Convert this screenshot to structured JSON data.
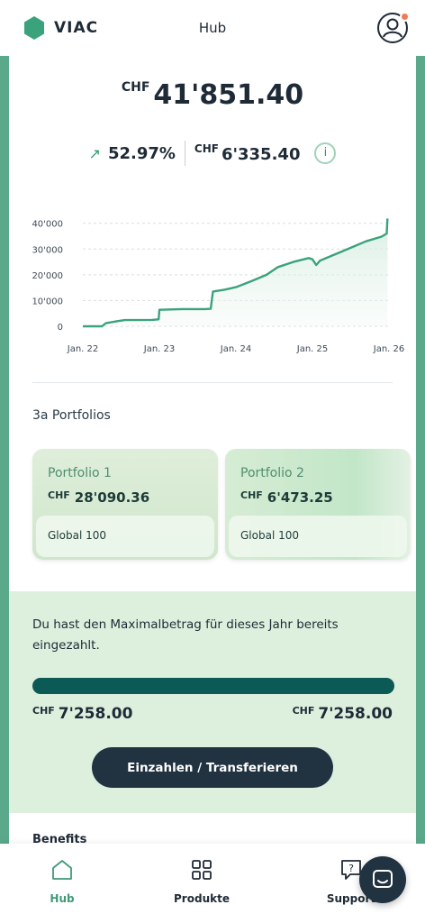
{
  "header": {
    "logo_text": "VIAC",
    "title": "Hub"
  },
  "balance": {
    "currency": "CHF",
    "amount": "41'851.40"
  },
  "performance": {
    "percent": "52.97%",
    "currency": "CHF",
    "gain": "6'335.40",
    "info_label": "i"
  },
  "chart_data": {
    "type": "area",
    "x_ticks": [
      "Jan. 22",
      "Jan. 23",
      "Jan. 24",
      "Jan. 25",
      "Jan. 26"
    ],
    "y_ticks": [
      "0",
      "10'000",
      "20'000",
      "30'000",
      "40'000"
    ],
    "ylim": [
      0,
      42000
    ],
    "xlim": [
      2022.0,
      2026.0
    ],
    "series": [
      {
        "points": [
          [
            2022.0,
            0
          ],
          [
            2022.25,
            0
          ],
          [
            2022.3,
            1200
          ],
          [
            2022.45,
            2000
          ],
          [
            2022.55,
            2400
          ],
          [
            2022.9,
            2500
          ],
          [
            2022.99,
            2700
          ],
          [
            2023.0,
            6400
          ],
          [
            2023.3,
            6700
          ],
          [
            2023.6,
            6700
          ],
          [
            2023.67,
            6800
          ],
          [
            2023.7,
            13500
          ],
          [
            2023.85,
            14200
          ],
          [
            2024.0,
            15200
          ],
          [
            2024.2,
            17500
          ],
          [
            2024.4,
            20000
          ],
          [
            2024.55,
            23000
          ],
          [
            2024.75,
            25000
          ],
          [
            2024.95,
            26500
          ],
          [
            2025.0,
            26000
          ],
          [
            2025.05,
            23800
          ],
          [
            2025.1,
            25500
          ],
          [
            2025.3,
            28000
          ],
          [
            2025.5,
            30500
          ],
          [
            2025.7,
            33000
          ],
          [
            2025.9,
            34800
          ],
          [
            2025.97,
            36000
          ],
          [
            2025.98,
            41851
          ]
        ]
      }
    ]
  },
  "portfolios_section": {
    "title": "3a Portfolios"
  },
  "portfolios": [
    {
      "name": "Portfolio 1",
      "currency": "CHF",
      "value": "28'090.36",
      "strategy": "Global 100"
    },
    {
      "name": "Portfolio 2",
      "currency": "CHF",
      "value": "6'473.25",
      "strategy": "Global 100"
    }
  ],
  "max_contribution": {
    "text": "Du hast den Maximalbetrag für dieses Jahr bereits eingezahlt.",
    "progress_fraction": 1.0,
    "left_currency": "CHF",
    "left_amount": "7'258.00",
    "right_currency": "CHF",
    "right_amount": "7'258.00",
    "cta_label": "Einzahlen / Transferieren"
  },
  "benefits": {
    "title": "Benefits"
  },
  "nav": {
    "hub": "Hub",
    "produkte": "Produkte",
    "support": "Support"
  },
  "colors": {
    "accent": "#3f9a76",
    "line": "#3aa37c",
    "dark": "#213241",
    "progress": "#0c5a56"
  }
}
